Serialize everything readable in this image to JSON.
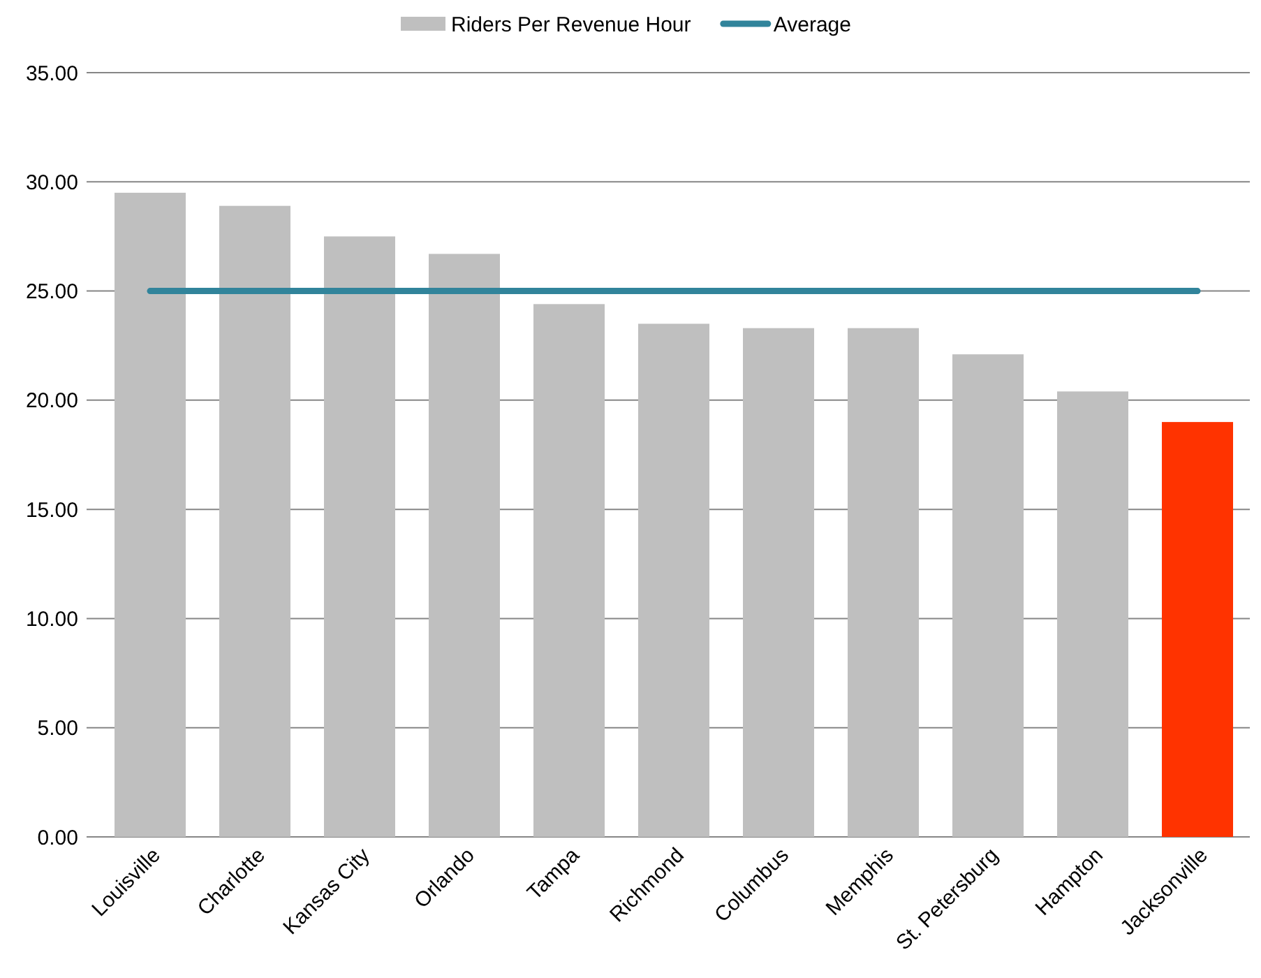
{
  "chart_data": {
    "type": "bar",
    "categories": [
      "Louisville",
      "Charlotte",
      "Kansas City",
      "Orlando",
      "Tampa",
      "Richmond",
      "Columbus",
      "Memphis",
      "St. Petersburg",
      "Hampton",
      "Jacksonville"
    ],
    "series": [
      {
        "name": "Riders Per Revenue Hour",
        "color": "#bfbfbf",
        "colors": [
          "#bfbfbf",
          "#bfbfbf",
          "#bfbfbf",
          "#bfbfbf",
          "#bfbfbf",
          "#bfbfbf",
          "#bfbfbf",
          "#bfbfbf",
          "#bfbfbf",
          "#bfbfbf",
          "#ff3300"
        ],
        "values": [
          29.5,
          28.9,
          27.5,
          26.7,
          24.4,
          23.5,
          23.3,
          23.3,
          22.1,
          20.4,
          19.0
        ]
      },
      {
        "name": "Average",
        "type": "line",
        "color": "#31849b",
        "values": [
          25.0,
          25.0,
          25.0,
          25.0,
          25.0,
          25.0,
          25.0,
          25.0,
          25.0,
          25.0,
          25.0
        ]
      }
    ],
    "ylim": [
      0,
      35
    ],
    "yticks": [
      {
        "value": 0,
        "label": "0.00"
      },
      {
        "value": 5,
        "label": "5.00"
      },
      {
        "value": 10,
        "label": "10.00"
      },
      {
        "value": 15,
        "label": "15.00"
      },
      {
        "value": 20,
        "label": "20.00"
      },
      {
        "value": 25,
        "label": "25.00"
      },
      {
        "value": 30,
        "label": "30.00"
      },
      {
        "value": 35,
        "label": "35.00"
      }
    ],
    "grid": "y",
    "legend": "top",
    "marker": "none",
    "line_style": "solid"
  }
}
